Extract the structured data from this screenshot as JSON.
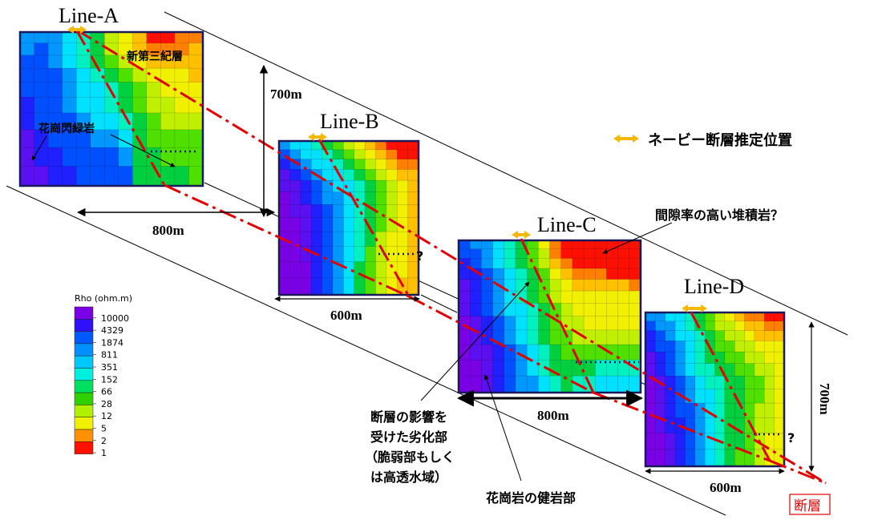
{
  "palette": [
    "#7a00e6",
    "#5a10f0",
    "#2020ff",
    "#0050ff",
    "#0098ff",
    "#00e0ff",
    "#00f0c0",
    "#00d040",
    "#50e000",
    "#c0f000",
    "#f0f000",
    "#ffc000",
    "#ff8000",
    "#ff1000"
  ],
  "colors": {
    "fault_line": "#e00000",
    "fault_marker": "#f5b800",
    "dotted": "#1a1a80",
    "label_box_border": "#e00000",
    "label_text": "#e00000"
  },
  "lines": [
    {
      "name": "Line-A"
    },
    {
      "name": "Line-B"
    },
    {
      "name": "Line-C"
    },
    {
      "name": "Line-D"
    }
  ],
  "dimensions": {
    "a_width": "800m",
    "a_depth": "700m",
    "b_width": "600m",
    "c_width": "800m",
    "d_width": "600m",
    "d_depth": "700m"
  },
  "legend": {
    "title": "Rho (ohm.m)",
    "values": [
      "10000",
      "4329",
      "1874",
      "811",
      "351",
      "152",
      "66",
      "28",
      "12",
      "5",
      "2",
      "1"
    ],
    "colors": [
      "#7a00e6",
      "#3010f8",
      "#0058ff",
      "#0090ff",
      "#00c8ff",
      "#00f0e0",
      "#00e060",
      "#30d000",
      "#b0f000",
      "#f0f000",
      "#ff9000",
      "#ff1000"
    ]
  },
  "annotations": {
    "neogene": "新第三紀層",
    "granodiorite": "花崗閃緑岩",
    "fault_marker_legend": "ネービー断層推定位置",
    "porous_sediment": "間隙率の高い堆積岩？",
    "weathered_lines": [
      "断層の影響を",
      "受けた劣化部",
      "（脆弱部もしく",
      "は高透水域）"
    ],
    "sound_granite": "花崗岩の健岩部",
    "fault_label": "断層",
    "question": "?"
  },
  "panels": [
    {
      "grid": [
        [
          4,
          4,
          4,
          5,
          6,
          7,
          9,
          10,
          11,
          13,
          13,
          12,
          12
        ],
        [
          4,
          3,
          4,
          5,
          6,
          7,
          9,
          10,
          11,
          12,
          12,
          12,
          11
        ],
        [
          3,
          3,
          4,
          5,
          6,
          7,
          8,
          9,
          10,
          11,
          11,
          11,
          11
        ],
        [
          3,
          3,
          3,
          4,
          5,
          6,
          7,
          8,
          9,
          10,
          10,
          10,
          11
        ],
        [
          3,
          3,
          3,
          4,
          5,
          5,
          6,
          7,
          8,
          9,
          10,
          10,
          10
        ],
        [
          2,
          3,
          3,
          4,
          5,
          5,
          6,
          7,
          8,
          9,
          9,
          10,
          10
        ],
        [
          2,
          3,
          3,
          3,
          4,
          5,
          5,
          6,
          7,
          8,
          9,
          9,
          9
        ],
        [
          1,
          2,
          3,
          3,
          3,
          4,
          4,
          5,
          7,
          8,
          8,
          8,
          8
        ],
        [
          1,
          2,
          2,
          3,
          3,
          3,
          3,
          4,
          7,
          7,
          8,
          8,
          8
        ],
        [
          1,
          1,
          2,
          2,
          3,
          3,
          3,
          3,
          7,
          7,
          7,
          7,
          8
        ]
      ]
    },
    {
      "grid": [
        [
          4,
          5,
          5,
          6,
          7,
          8,
          9,
          10,
          11,
          12,
          13,
          13,
          13
        ],
        [
          3,
          4,
          5,
          5,
          6,
          7,
          8,
          9,
          10,
          11,
          12,
          13,
          13
        ],
        [
          2,
          3,
          4,
          5,
          5,
          6,
          7,
          8,
          9,
          10,
          11,
          12,
          12
        ],
        [
          1,
          2,
          3,
          4,
          5,
          5,
          6,
          7,
          8,
          9,
          10,
          11,
          11
        ],
        [
          1,
          1,
          2,
          3,
          4,
          5,
          5,
          6,
          7,
          8,
          9,
          10,
          11
        ],
        [
          0,
          1,
          2,
          3,
          4,
          4,
          5,
          6,
          7,
          8,
          9,
          10,
          11
        ],
        [
          0,
          1,
          1,
          2,
          3,
          4,
          5,
          6,
          7,
          8,
          9,
          10,
          11
        ],
        [
          0,
          0,
          1,
          2,
          3,
          4,
          5,
          6,
          7,
          8,
          9,
          10,
          11
        ],
        [
          0,
          0,
          1,
          2,
          3,
          4,
          5,
          6,
          7,
          9,
          10,
          10,
          11
        ],
        [
          0,
          0,
          1,
          2,
          3,
          4,
          5,
          6,
          8,
          9,
          10,
          10,
          11
        ],
        [
          0,
          0,
          0,
          2,
          3,
          4,
          5,
          7,
          8,
          9,
          10,
          10,
          11
        ],
        [
          0,
          0,
          0,
          2,
          3,
          4,
          5,
          7,
          8,
          9,
          10,
          11,
          11
        ]
      ]
    },
    {
      "grid": [
        [
          3,
          4,
          4,
          5,
          6,
          7,
          8,
          10,
          12,
          13,
          13,
          13,
          13,
          13,
          13,
          13
        ],
        [
          3,
          3,
          4,
          5,
          6,
          7,
          8,
          9,
          12,
          13,
          13,
          13,
          13,
          13,
          13,
          13
        ],
        [
          2,
          3,
          4,
          5,
          6,
          7,
          8,
          9,
          11,
          12,
          13,
          13,
          13,
          13,
          13,
          13
        ],
        [
          2,
          2,
          3,
          4,
          5,
          6,
          7,
          8,
          10,
          11,
          12,
          12,
          12,
          13,
          13,
          13
        ],
        [
          1,
          2,
          3,
          4,
          5,
          6,
          7,
          8,
          9,
          10,
          11,
          11,
          11,
          11,
          11,
          12
        ],
        [
          1,
          2,
          3,
          4,
          5,
          6,
          7,
          8,
          9,
          10,
          10,
          10,
          10,
          10,
          10,
          10
        ],
        [
          1,
          2,
          3,
          4,
          5,
          5,
          6,
          7,
          8,
          9,
          10,
          10,
          10,
          10,
          10,
          10
        ],
        [
          0,
          1,
          2,
          3,
          4,
          5,
          6,
          7,
          8,
          9,
          9,
          10,
          10,
          10,
          10,
          10
        ],
        [
          0,
          1,
          2,
          3,
          4,
          5,
          6,
          7,
          8,
          8,
          9,
          9,
          9,
          9,
          9,
          9
        ],
        [
          0,
          1,
          1,
          2,
          3,
          4,
          5,
          6,
          7,
          8,
          8,
          8,
          8,
          8,
          8,
          8
        ],
        [
          0,
          0,
          1,
          2,
          3,
          4,
          5,
          6,
          7,
          7,
          7,
          7,
          6,
          6,
          6,
          6
        ],
        [
          0,
          0,
          1,
          2,
          3,
          4,
          4,
          5,
          6,
          7,
          6,
          6,
          5,
          5,
          5,
          5
        ]
      ]
    },
    {
      "grid": [
        [
          4,
          4,
          5,
          5,
          6,
          7,
          8,
          9,
          10,
          11,
          12,
          12,
          13,
          13
        ],
        [
          3,
          4,
          4,
          5,
          6,
          7,
          8,
          9,
          9,
          10,
          11,
          11,
          12,
          12
        ],
        [
          2,
          3,
          4,
          5,
          5,
          6,
          7,
          8,
          9,
          9,
          10,
          11,
          11,
          11
        ],
        [
          2,
          3,
          3,
          4,
          5,
          6,
          7,
          8,
          8,
          9,
          9,
          10,
          10,
          10
        ],
        [
          1,
          2,
          3,
          4,
          5,
          6,
          7,
          7,
          8,
          8,
          9,
          9,
          10,
          10
        ],
        [
          1,
          2,
          3,
          4,
          5,
          6,
          6,
          7,
          7,
          8,
          8,
          9,
          9,
          10
        ],
        [
          0,
          1,
          2,
          3,
          4,
          5,
          6,
          6,
          7,
          7,
          8,
          8,
          9,
          10
        ],
        [
          0,
          1,
          2,
          3,
          4,
          5,
          5,
          6,
          7,
          7,
          8,
          8,
          9,
          10
        ],
        [
          0,
          1,
          2,
          3,
          3,
          4,
          5,
          6,
          7,
          7,
          8,
          9,
          9,
          10
        ],
        [
          0,
          1,
          2,
          2,
          3,
          4,
          5,
          6,
          7,
          7,
          8,
          9,
          9,
          10
        ],
        [
          0,
          0,
          1,
          2,
          3,
          4,
          5,
          6,
          7,
          7,
          8,
          9,
          10,
          10
        ],
        [
          0,
          0,
          1,
          2,
          3,
          4,
          5,
          6,
          7,
          8,
          8,
          9,
          10,
          10
        ]
      ]
    }
  ]
}
